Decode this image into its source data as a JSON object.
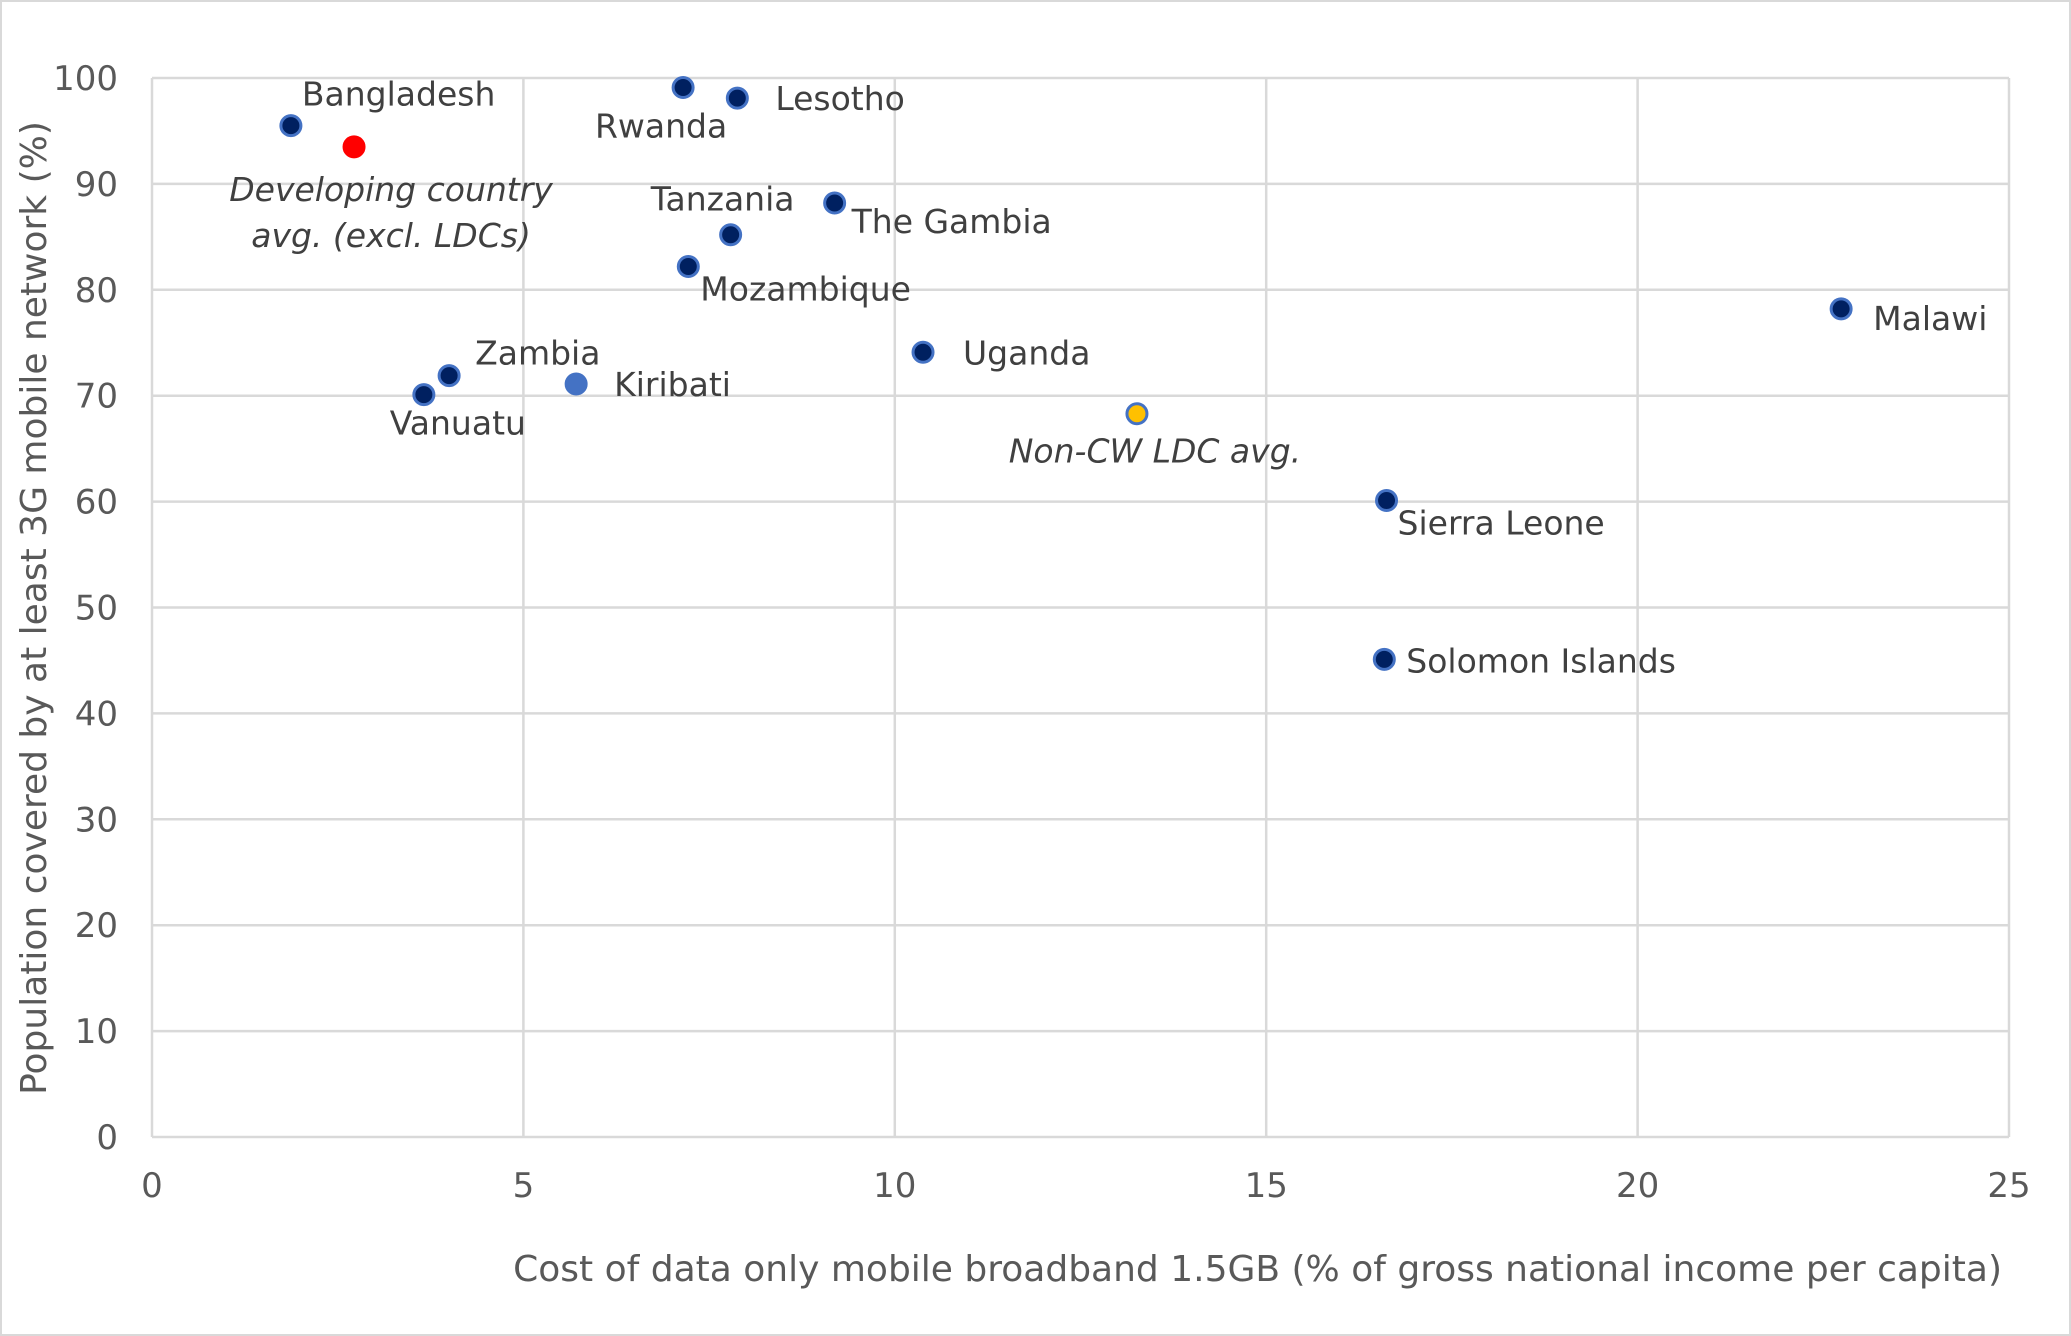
{
  "chart_data": {
    "type": "scatter",
    "xlabel": "Cost of data only mobile broadband 1.5GB (% of gross national income per capita)",
    "ylabel": "Population covered by at least 3G mobile network (%)",
    "xlim": [
      0,
      25
    ],
    "ylim": [
      0,
      100
    ],
    "xticks": [
      0,
      5,
      10,
      15,
      20,
      25
    ],
    "yticks": [
      0,
      10,
      20,
      30,
      40,
      50,
      60,
      70,
      80,
      90,
      100
    ],
    "grid": true,
    "colors": {
      "country": "#002060",
      "country_outline": "#4472c4",
      "kiribati": "#4472c4",
      "developing_avg": "#ff0000",
      "non_cw_ldc_avg": "#ffc000"
    },
    "points": [
      {
        "label": [
          "Bangladesh"
        ],
        "x": 1.87,
        "y": 95.5,
        "style": "country"
      },
      {
        "label": [
          "Developing country",
          "avg. (excl. LDCs)"
        ],
        "x": 2.72,
        "y": 93.5,
        "style": "developing_avg",
        "italic": true
      },
      {
        "label": [
          "Rwanda"
        ],
        "x": 7.15,
        "y": 99.1,
        "style": "country"
      },
      {
        "label": [
          "Lesotho"
        ],
        "x": 7.88,
        "y": 98.1,
        "style": "country"
      },
      {
        "label": [
          "Tanzania"
        ],
        "x": 7.79,
        "y": 85.2,
        "style": "country"
      },
      {
        "label": [
          "The Gambia"
        ],
        "x": 9.19,
        "y": 88.2,
        "style": "country"
      },
      {
        "label": [
          "Mozambique"
        ],
        "x": 7.22,
        "y": 82.2,
        "style": "country"
      },
      {
        "label": [
          "Zambia"
        ],
        "x": 4.0,
        "y": 71.9,
        "style": "country"
      },
      {
        "label": [
          "Vanuatu"
        ],
        "x": 3.66,
        "y": 70.1,
        "style": "country"
      },
      {
        "label": [
          "Kiribati"
        ],
        "x": 5.71,
        "y": 71.1,
        "style": "kiribati"
      },
      {
        "label": [
          "Uganda"
        ],
        "x": 10.38,
        "y": 74.1,
        "style": "country"
      },
      {
        "label": [
          "Non-CW LDC avg."
        ],
        "x": 13.26,
        "y": 68.3,
        "style": "non_cw_ldc_avg",
        "italic": true
      },
      {
        "label": [
          "Malawi"
        ],
        "x": 22.74,
        "y": 78.2,
        "style": "country"
      },
      {
        "label": [
          "Sierra Leone"
        ],
        "x": 16.62,
        "y": 60.1,
        "style": "country"
      },
      {
        "label": [
          "Solomon Islands"
        ],
        "x": 16.59,
        "y": 45.1,
        "style": "country"
      }
    ]
  }
}
